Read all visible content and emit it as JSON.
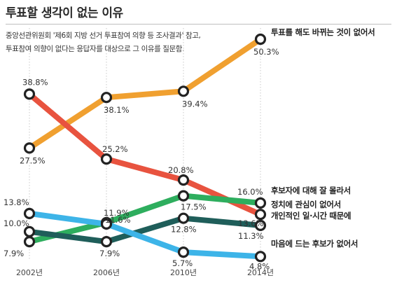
{
  "title": "투표할 생각이 없는 이유",
  "subtitle": [
    "중앙선관위원회 '제6회 지방 선거 투표참여 의향 등 조사결과' 참고,",
    "투표참여 의향이 없다는 응답자를 대상으로 그 이유를 질문함."
  ],
  "chart_data": {
    "type": "line",
    "title": "투표할 생각이 없는 이유",
    "categories": [
      "2002년",
      "2006년",
      "2010년",
      "2014년"
    ],
    "ylim": [
      0,
      55
    ],
    "grid": "vertical",
    "unit": "%",
    "series": [
      {
        "name": "투표를 해도 바뀌는 것이 없어서",
        "color": "#F0A030",
        "values": [
          27.5,
          38.1,
          39.4,
          50.3
        ],
        "labels": [
          "27.5%",
          "38.1%",
          "39.4%",
          "50.3%"
        ]
      },
      {
        "name": "후보자에 대해 잘 몰라서",
        "color": "#E8533F",
        "values": [
          38.8,
          25.2,
          20.8,
          13.6
        ],
        "labels": [
          "38.8%",
          "25.2%",
          "20.8%",
          "13.6%"
        ]
      },
      {
        "name": "정치에 관심이 없어서",
        "color": "#2EAE5E",
        "values": [
          7.9,
          11.9,
          17.5,
          16.0
        ],
        "labels": [
          "7.9%",
          "11.9%",
          "17.5%",
          "16.0%"
        ]
      },
      {
        "name": "개인적인 일·시간 때문에",
        "color": "#1F5E5A",
        "values": [
          10.0,
          7.9,
          12.8,
          11.3
        ],
        "labels": [
          "10.0%",
          "7.9%",
          "12.8%",
          "11.3%"
        ]
      },
      {
        "name": "마음에 드는 후보가 없어서",
        "color": "#3DB4E8",
        "values": [
          13.8,
          11.6,
          5.7,
          4.8
        ],
        "labels": [
          "13.8%",
          "11.6%",
          "5.7%",
          "4.8%"
        ]
      }
    ]
  }
}
